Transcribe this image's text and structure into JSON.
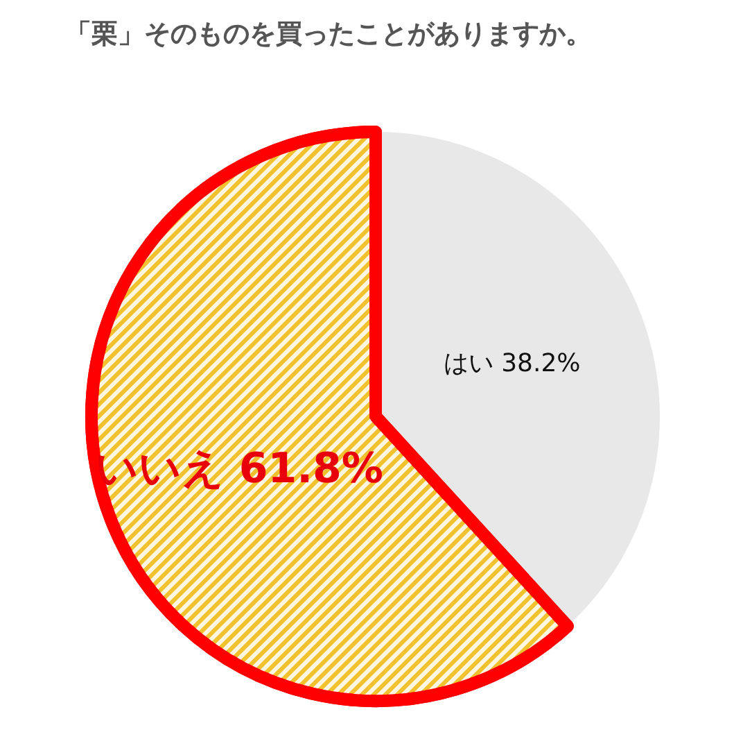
{
  "chart_data": {
    "type": "pie",
    "title": "「栗」そのものを買ったことがありますか。",
    "categories": [
      "はい",
      "いいえ"
    ],
    "values": [
      38.2,
      61.8
    ],
    "colors": [
      "#e8e8e8",
      "#f2c12e"
    ],
    "value_labels": [
      "38.2%",
      "61.8%"
    ]
  }
}
